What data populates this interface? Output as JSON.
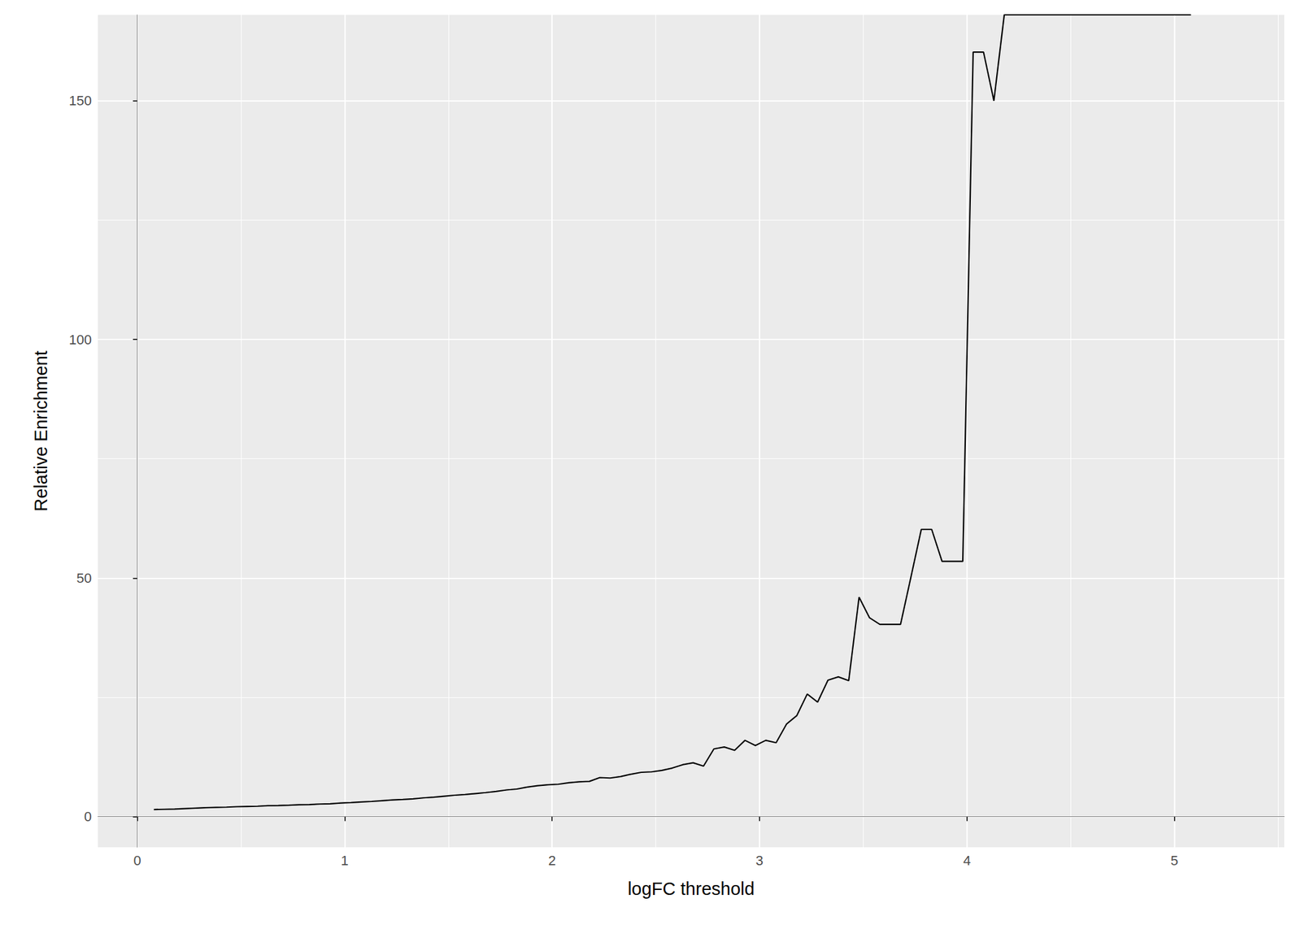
{
  "chart_data": {
    "type": "line",
    "x_label": "logFC threshold",
    "y_label": "Relative Enrichment",
    "color": "#000000",
    "grid": true,
    "xlim": [
      -0.19,
      5.53
    ],
    "xticks": [
      0,
      1,
      2,
      3,
      4,
      5
    ],
    "ylim": [
      -6.4,
      168
    ],
    "yticks": [
      0,
      50,
      100,
      150
    ],
    "x": [
      0.08,
      0.13,
      0.18,
      0.23,
      0.28,
      0.33,
      0.38,
      0.43,
      0.48,
      0.53,
      0.58,
      0.63,
      0.68,
      0.73,
      0.78,
      0.83,
      0.88,
      0.93,
      0.98,
      1.03,
      1.08,
      1.13,
      1.18,
      1.23,
      1.28,
      1.33,
      1.38,
      1.43,
      1.48,
      1.53,
      1.58,
      1.63,
      1.68,
      1.73,
      1.78,
      1.83,
      1.88,
      1.93,
      1.98,
      2.03,
      2.08,
      2.13,
      2.18,
      2.23,
      2.28,
      2.33,
      2.38,
      2.43,
      2.48,
      2.53,
      2.58,
      2.63,
      2.68,
      2.73,
      2.78,
      2.83,
      2.88,
      2.93,
      2.98,
      3.03,
      3.08,
      3.13,
      3.18,
      3.23,
      3.28,
      3.33,
      3.38,
      3.43,
      3.48,
      3.53,
      3.58,
      3.63,
      3.68,
      3.73,
      3.78,
      3.83,
      3.88,
      3.93,
      3.98,
      4.03,
      4.08,
      4.13,
      4.18,
      4.23,
      4.28,
      4.33,
      4.38,
      4.43,
      4.48,
      4.53,
      4.58,
      4.63,
      4.68,
      4.73,
      4.78,
      4.83,
      4.88,
      4.93,
      4.98,
      5.03,
      5.08
    ],
    "values": [
      1.5,
      1.55,
      1.6,
      1.7,
      1.8,
      1.9,
      1.95,
      2.0,
      2.1,
      2.15,
      2.2,
      2.3,
      2.35,
      2.4,
      2.5,
      2.55,
      2.65,
      2.7,
      2.85,
      2.95,
      3.1,
      3.2,
      3.35,
      3.5,
      3.6,
      3.75,
      3.95,
      4.1,
      4.3,
      4.5,
      4.65,
      4.85,
      5.05,
      5.3,
      5.6,
      5.8,
      6.2,
      6.5,
      6.7,
      6.8,
      7.1,
      7.3,
      7.4,
      8.2,
      8.1,
      8.4,
      8.9,
      9.3,
      9.4,
      9.7,
      10.2,
      10.9,
      11.3,
      10.6,
      14.2,
      14.6,
      13.9,
      16,
      14.9,
      16,
      15.5,
      19.4,
      21.2,
      25.7,
      24,
      28.6,
      29.3,
      28.5,
      46,
      41.7,
      40.3,
      40.3,
      40.3,
      50.2,
      60.2,
      60.2,
      53.5,
      53.5,
      53.5,
      160.2,
      160.2,
      150,
      168,
      168,
      168,
      168,
      168,
      168,
      168,
      168,
      168,
      168,
      168,
      168,
      168,
      168,
      168,
      168,
      168,
      168,
      168
    ]
  }
}
